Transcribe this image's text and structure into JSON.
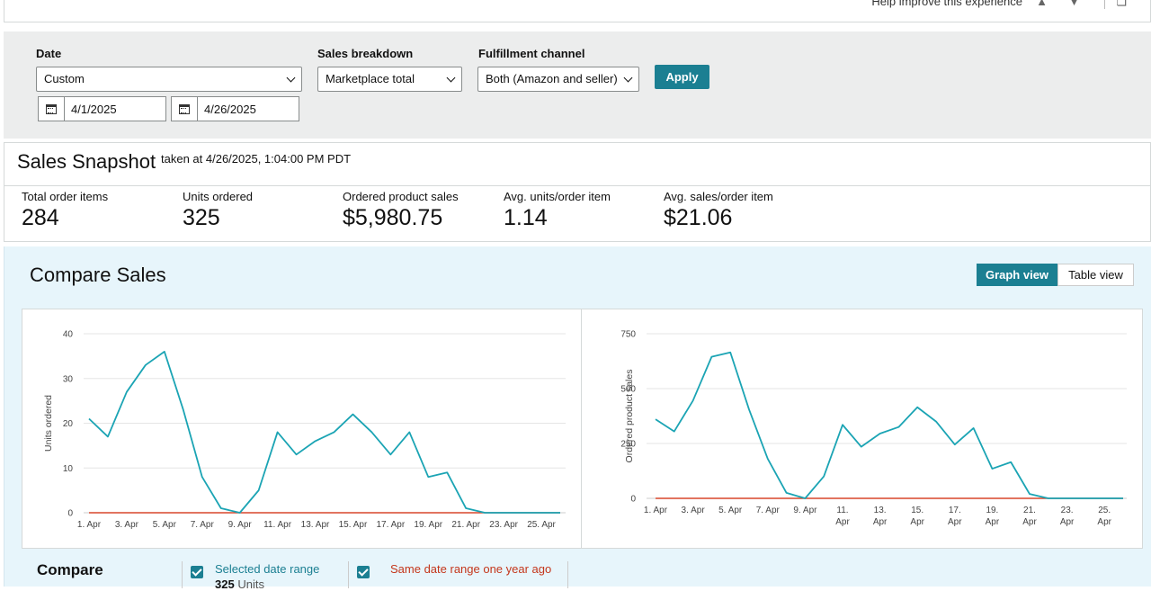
{
  "topbar": {
    "help_text": "Help improve this experience"
  },
  "filters": {
    "date_label": "Date",
    "date_value": "Custom",
    "start_date": "4/1/2025",
    "end_date": "4/26/2025",
    "breakdown_label": "Sales breakdown",
    "breakdown_value": "Marketplace total",
    "channel_label": "Fulfillment channel",
    "channel_value": "Both (Amazon and seller)",
    "apply_label": "Apply"
  },
  "snapshot": {
    "title": "Sales Snapshot",
    "taken_at": "taken at 4/26/2025, 1:04:00 PM PDT",
    "metrics": [
      {
        "label": "Total order items",
        "value": "284"
      },
      {
        "label": "Units ordered",
        "value": "325"
      },
      {
        "label": "Ordered product sales",
        "value": "$5,980.75"
      },
      {
        "label": "Avg. units/order item",
        "value": "1.14"
      },
      {
        "label": "Avg. sales/order item",
        "value": "$21.06"
      }
    ]
  },
  "compare": {
    "title": "Compare Sales",
    "graph_view": "Graph view",
    "table_view": "Table view",
    "bottom_title": "Compare",
    "legend_selected": "Selected date range",
    "legend_selected_units_value": "325",
    "legend_selected_units_label": "Units",
    "legend_last_year": "Same date range one year ago"
  },
  "colors": {
    "accent": "#1b7f92",
    "series_current": "#1ba4b4",
    "series_last_year": "#d9472b"
  },
  "chart_data": [
    {
      "type": "line",
      "ylabel": "Units ordered",
      "ylim": [
        0,
        40
      ],
      "yticks": [
        0,
        10,
        20,
        30,
        40
      ],
      "x_tick_labels": [
        "1. Apr",
        "3. Apr",
        "5. Apr",
        "7. Apr",
        "9. Apr",
        "11. Apr",
        "13. Apr",
        "15. Apr",
        "17. Apr",
        "19. Apr",
        "21. Apr",
        "23. Apr",
        "25. Apr"
      ],
      "x": [
        1,
        2,
        3,
        4,
        5,
        6,
        7,
        8,
        9,
        10,
        11,
        12,
        13,
        14,
        15,
        16,
        17,
        18,
        19,
        20,
        21,
        22,
        23,
        24,
        25,
        26
      ],
      "series": [
        {
          "values": [
            21,
            17,
            27,
            33,
            36,
            23,
            8,
            1,
            0,
            5,
            18,
            13,
            16,
            18,
            22,
            18,
            13,
            18,
            8,
            9,
            1,
            0,
            0,
            0,
            0,
            0
          ]
        },
        {
          "values": [
            0,
            0,
            0,
            0,
            0,
            0,
            0,
            0,
            0,
            0,
            0,
            0,
            0,
            0,
            0,
            0,
            0,
            0,
            0,
            0,
            0,
            0,
            0,
            0,
            0,
            0
          ]
        }
      ]
    },
    {
      "type": "line",
      "ylabel": "Ordered product sales",
      "ylim": [
        0,
        750
      ],
      "yticks": [
        0,
        250,
        500,
        750
      ],
      "x_tick_labels": [
        "1. Apr",
        "3. Apr",
        "5. Apr",
        "7. Apr",
        "9. Apr",
        "11. Apr",
        "13. Apr",
        "15. Apr",
        "17. Apr",
        "19. Apr",
        "21. Apr",
        "23. Apr",
        "25. Apr"
      ],
      "x": [
        1,
        2,
        3,
        4,
        5,
        6,
        7,
        8,
        9,
        10,
        11,
        12,
        13,
        14,
        15,
        16,
        17,
        18,
        19,
        20,
        21,
        22,
        23,
        24,
        25,
        26
      ],
      "series": [
        {
          "values": [
            360,
            305,
            445,
            645,
            665,
            405,
            180,
            25,
            0,
            100,
            335,
            235,
            295,
            325,
            415,
            350,
            245,
            320,
            135,
            165,
            20,
            0,
            0,
            0,
            0,
            0
          ]
        },
        {
          "values": [
            0,
            0,
            0,
            0,
            0,
            0,
            0,
            0,
            0,
            0,
            0,
            0,
            0,
            0,
            0,
            0,
            0,
            0,
            0,
            0,
            0,
            0,
            0,
            0,
            0,
            0
          ]
        }
      ]
    }
  ]
}
